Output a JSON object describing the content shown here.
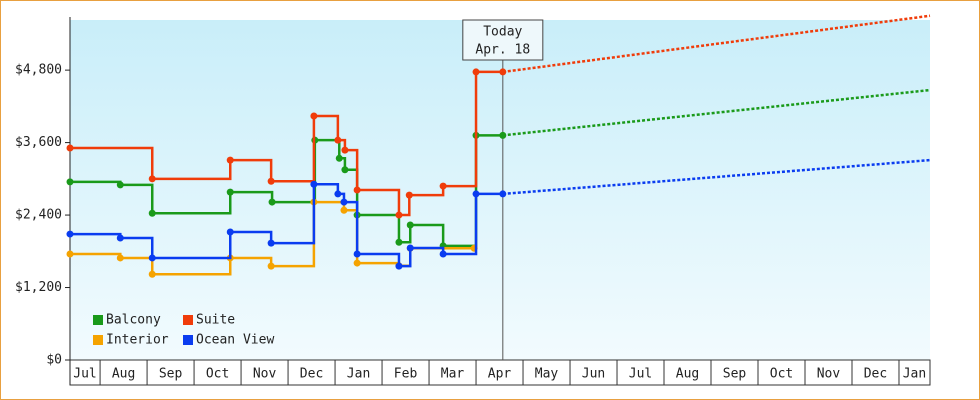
{
  "chart_data": {
    "type": "line",
    "step": true,
    "xlim": [
      0.36,
      18.66
    ],
    "ylim": [
      0,
      5630
    ],
    "xticks": [
      {
        "value": 0,
        "label": "Jul"
      },
      {
        "value": 1,
        "label": "Aug"
      },
      {
        "value": 2,
        "label": "Sep"
      },
      {
        "value": 3,
        "label": "Oct"
      },
      {
        "value": 4,
        "label": "Nov"
      },
      {
        "value": 5,
        "label": "Dec"
      },
      {
        "value": 6,
        "label": "Jan"
      },
      {
        "value": 7,
        "label": "Feb"
      },
      {
        "value": 8,
        "label": "Mar"
      },
      {
        "value": 9,
        "label": "Apr"
      },
      {
        "value": 10,
        "label": "May"
      },
      {
        "value": 11,
        "label": "Jun"
      },
      {
        "value": 12,
        "label": "Jul"
      },
      {
        "value": 13,
        "label": "Aug"
      },
      {
        "value": 14,
        "label": "Sep"
      },
      {
        "value": 15,
        "label": "Oct"
      },
      {
        "value": 16,
        "label": "Nov"
      },
      {
        "value": 17,
        "label": "Dec"
      },
      {
        "value": 18,
        "label": "Jan"
      }
    ],
    "yticks": [
      {
        "value": 0,
        "label": "$0"
      },
      {
        "value": 1200,
        "label": "$1,200"
      },
      {
        "value": 2400,
        "label": "$2,400"
      },
      {
        "value": 3600,
        "label": "$3,600"
      },
      {
        "value": 4800,
        "label": "$4,800"
      }
    ],
    "annotation": {
      "lines": [
        "Today",
        "Apr. 18"
      ],
      "x": 9.57
    },
    "series": [
      {
        "name": "Balcony",
        "color": "#1a9a1a",
        "x": [
          0.36,
          1.43,
          2.11,
          3.77,
          4.66,
          5.57,
          6.09,
          6.21,
          6.47,
          7.36,
          7.6,
          8.3,
          9.0,
          9.57
        ],
        "values": [
          2950,
          2900,
          2430,
          2780,
          2615,
          3640,
          3340,
          3150,
          2400,
          1950,
          2235,
          1890,
          3720,
          3720
        ],
        "forecast_x": [
          9.57,
          18.66
        ],
        "forecast_values": [
          3720,
          4470
        ]
      },
      {
        "name": "Suite",
        "color": "#f03c0a",
        "x": [
          0.36,
          2.11,
          3.77,
          4.64,
          5.55,
          6.06,
          6.21,
          6.47,
          7.36,
          7.58,
          8.3,
          9.0,
          9.57
        ],
        "values": [
          3510,
          3000,
          3310,
          2960,
          4040,
          3640,
          3475,
          2815,
          2400,
          2730,
          2880,
          4770,
          4770
        ],
        "forecast_x": [
          9.57,
          18.66
        ],
        "forecast_values": [
          4770,
          5700
        ]
      },
      {
        "name": "Interior",
        "color": "#f5a300",
        "x": [
          0.36,
          1.43,
          2.11,
          3.77,
          4.64,
          5.55,
          6.19,
          6.47,
          7.36,
          7.6,
          8.96
        ],
        "values": [
          1755,
          1690,
          1420,
          1690,
          1555,
          2615,
          2480,
          1605,
          1560,
          1850,
          1850
        ]
      },
      {
        "name": "Ocean View",
        "color": "#0a3cf0",
        "x": [
          0.36,
          1.43,
          2.11,
          3.77,
          4.64,
          5.55,
          6.06,
          6.19,
          6.47,
          7.36,
          7.6,
          8.3,
          9.0,
          9.57
        ],
        "values": [
          2085,
          2020,
          1690,
          2120,
          1935,
          2910,
          2750,
          2615,
          1755,
          1555,
          1855,
          1755,
          2750,
          2750
        ],
        "forecast_x": [
          9.57,
          18.66
        ],
        "forecast_values": [
          2750,
          3310
        ]
      }
    ]
  }
}
